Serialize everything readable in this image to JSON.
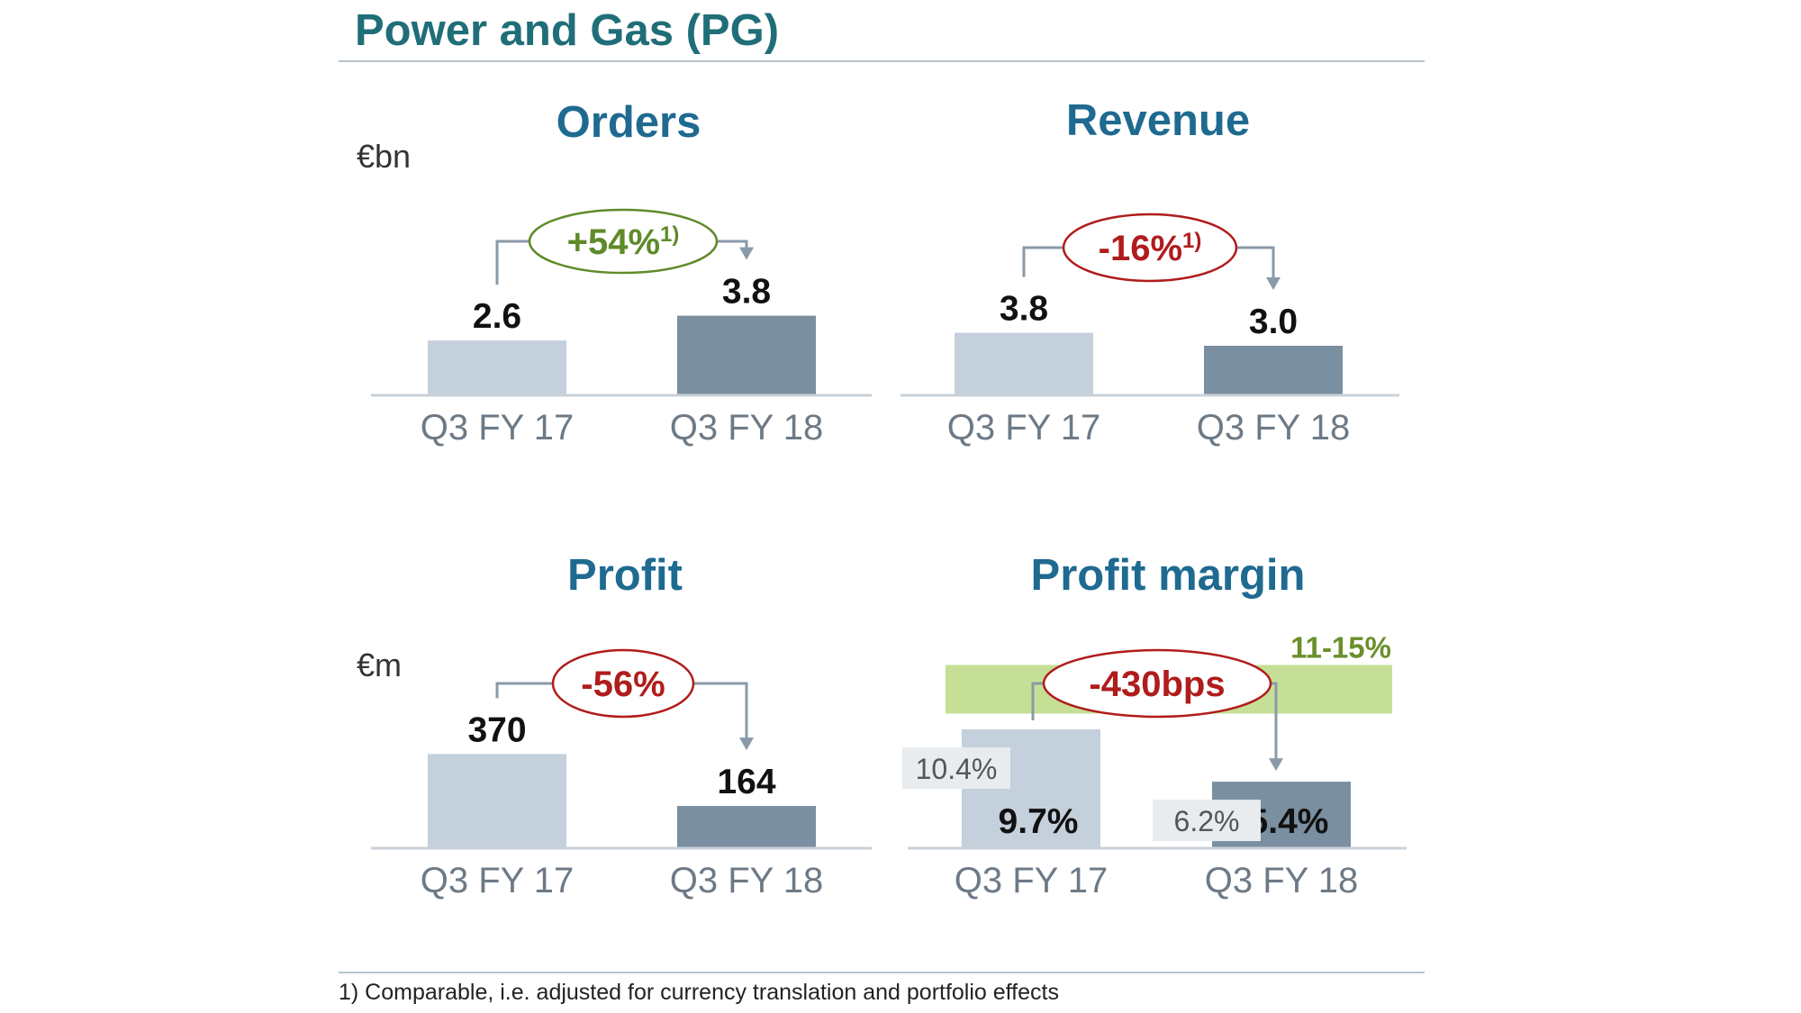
{
  "title": "Power and Gas (PG)",
  "footnote": "1) Comparable, i.e. adjusted for currency translation and portfolio effects",
  "colors": {
    "title": "#1f6e78",
    "panel_title": "#1f6a90",
    "bar_prior": "#c4d0db",
    "bar_current": "#7a8fa0",
    "positive": "#5f8a2a",
    "negative": "#b01c1c",
    "target_band": "#c6df96",
    "connector": "#8a9aa8"
  },
  "chart_data": [
    {
      "type": "bar",
      "title": "Orders",
      "unit": "€bn",
      "categories": [
        "Q3 FY 17",
        "Q3 FY 18"
      ],
      "values": [
        2.6,
        3.8
      ],
      "labels": [
        "2.6",
        "3.8"
      ],
      "change": {
        "text": "+54%",
        "footnote": "1)",
        "sign": "positive"
      }
    },
    {
      "type": "bar",
      "title": "Revenue",
      "unit": "",
      "categories": [
        "Q3 FY 17",
        "Q3 FY 18"
      ],
      "values": [
        3.8,
        3.0
      ],
      "labels": [
        "3.8",
        "3.0"
      ],
      "change": {
        "text": "-16%",
        "footnote": "1)",
        "sign": "negative"
      }
    },
    {
      "type": "bar",
      "title": "Profit",
      "unit": "€m",
      "categories": [
        "Q3 FY 17",
        "Q3 FY 18"
      ],
      "values": [
        370,
        164
      ],
      "labels": [
        "370",
        "164"
      ],
      "change": {
        "text": "-56%",
        "footnote": "",
        "sign": "negative"
      }
    },
    {
      "type": "bar",
      "title": "Profit margin",
      "unit": "",
      "categories": [
        "Q3 FY 17",
        "Q3 FY 18"
      ],
      "values": [
        9.7,
        5.4
      ],
      "labels": [
        "9.7%",
        "5.4%"
      ],
      "excluding_values": [
        10.4,
        6.2
      ],
      "excluding_labels": [
        "10.4%",
        "6.2%"
      ],
      "target_range": {
        "label": "11-15%",
        "low": 11,
        "high": 15
      },
      "change": {
        "text": "-430bps",
        "footnote": "",
        "sign": "negative"
      }
    }
  ]
}
